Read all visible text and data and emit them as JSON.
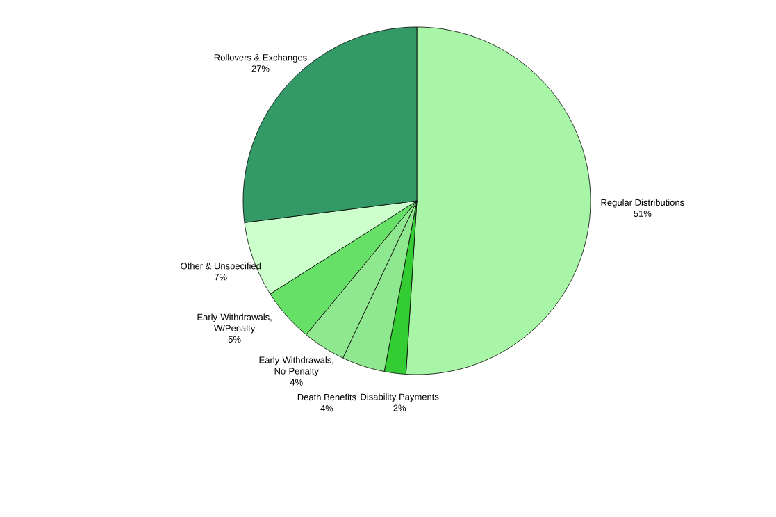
{
  "chart_data": {
    "type": "pie",
    "categories": [
      "Regular Distributions",
      "Disability Payments",
      "Death Benefits",
      "Early Withdrawals, No Penalty",
      "Early Withdrawals, W/Penalty",
      "Other & Unspecified",
      "Rollovers & Exchanges"
    ],
    "values": [
      51,
      2,
      4,
      4,
      5,
      7,
      27
    ],
    "value_labels": [
      "51%",
      "2%",
      "4%",
      "4%",
      "5%",
      "7%",
      "27%"
    ],
    "colors": [
      "#a8f5a8",
      "#33cc33",
      "#8fe88f",
      "#8fe88f",
      "#66e066",
      "#ccffcc",
      "#339966"
    ]
  }
}
